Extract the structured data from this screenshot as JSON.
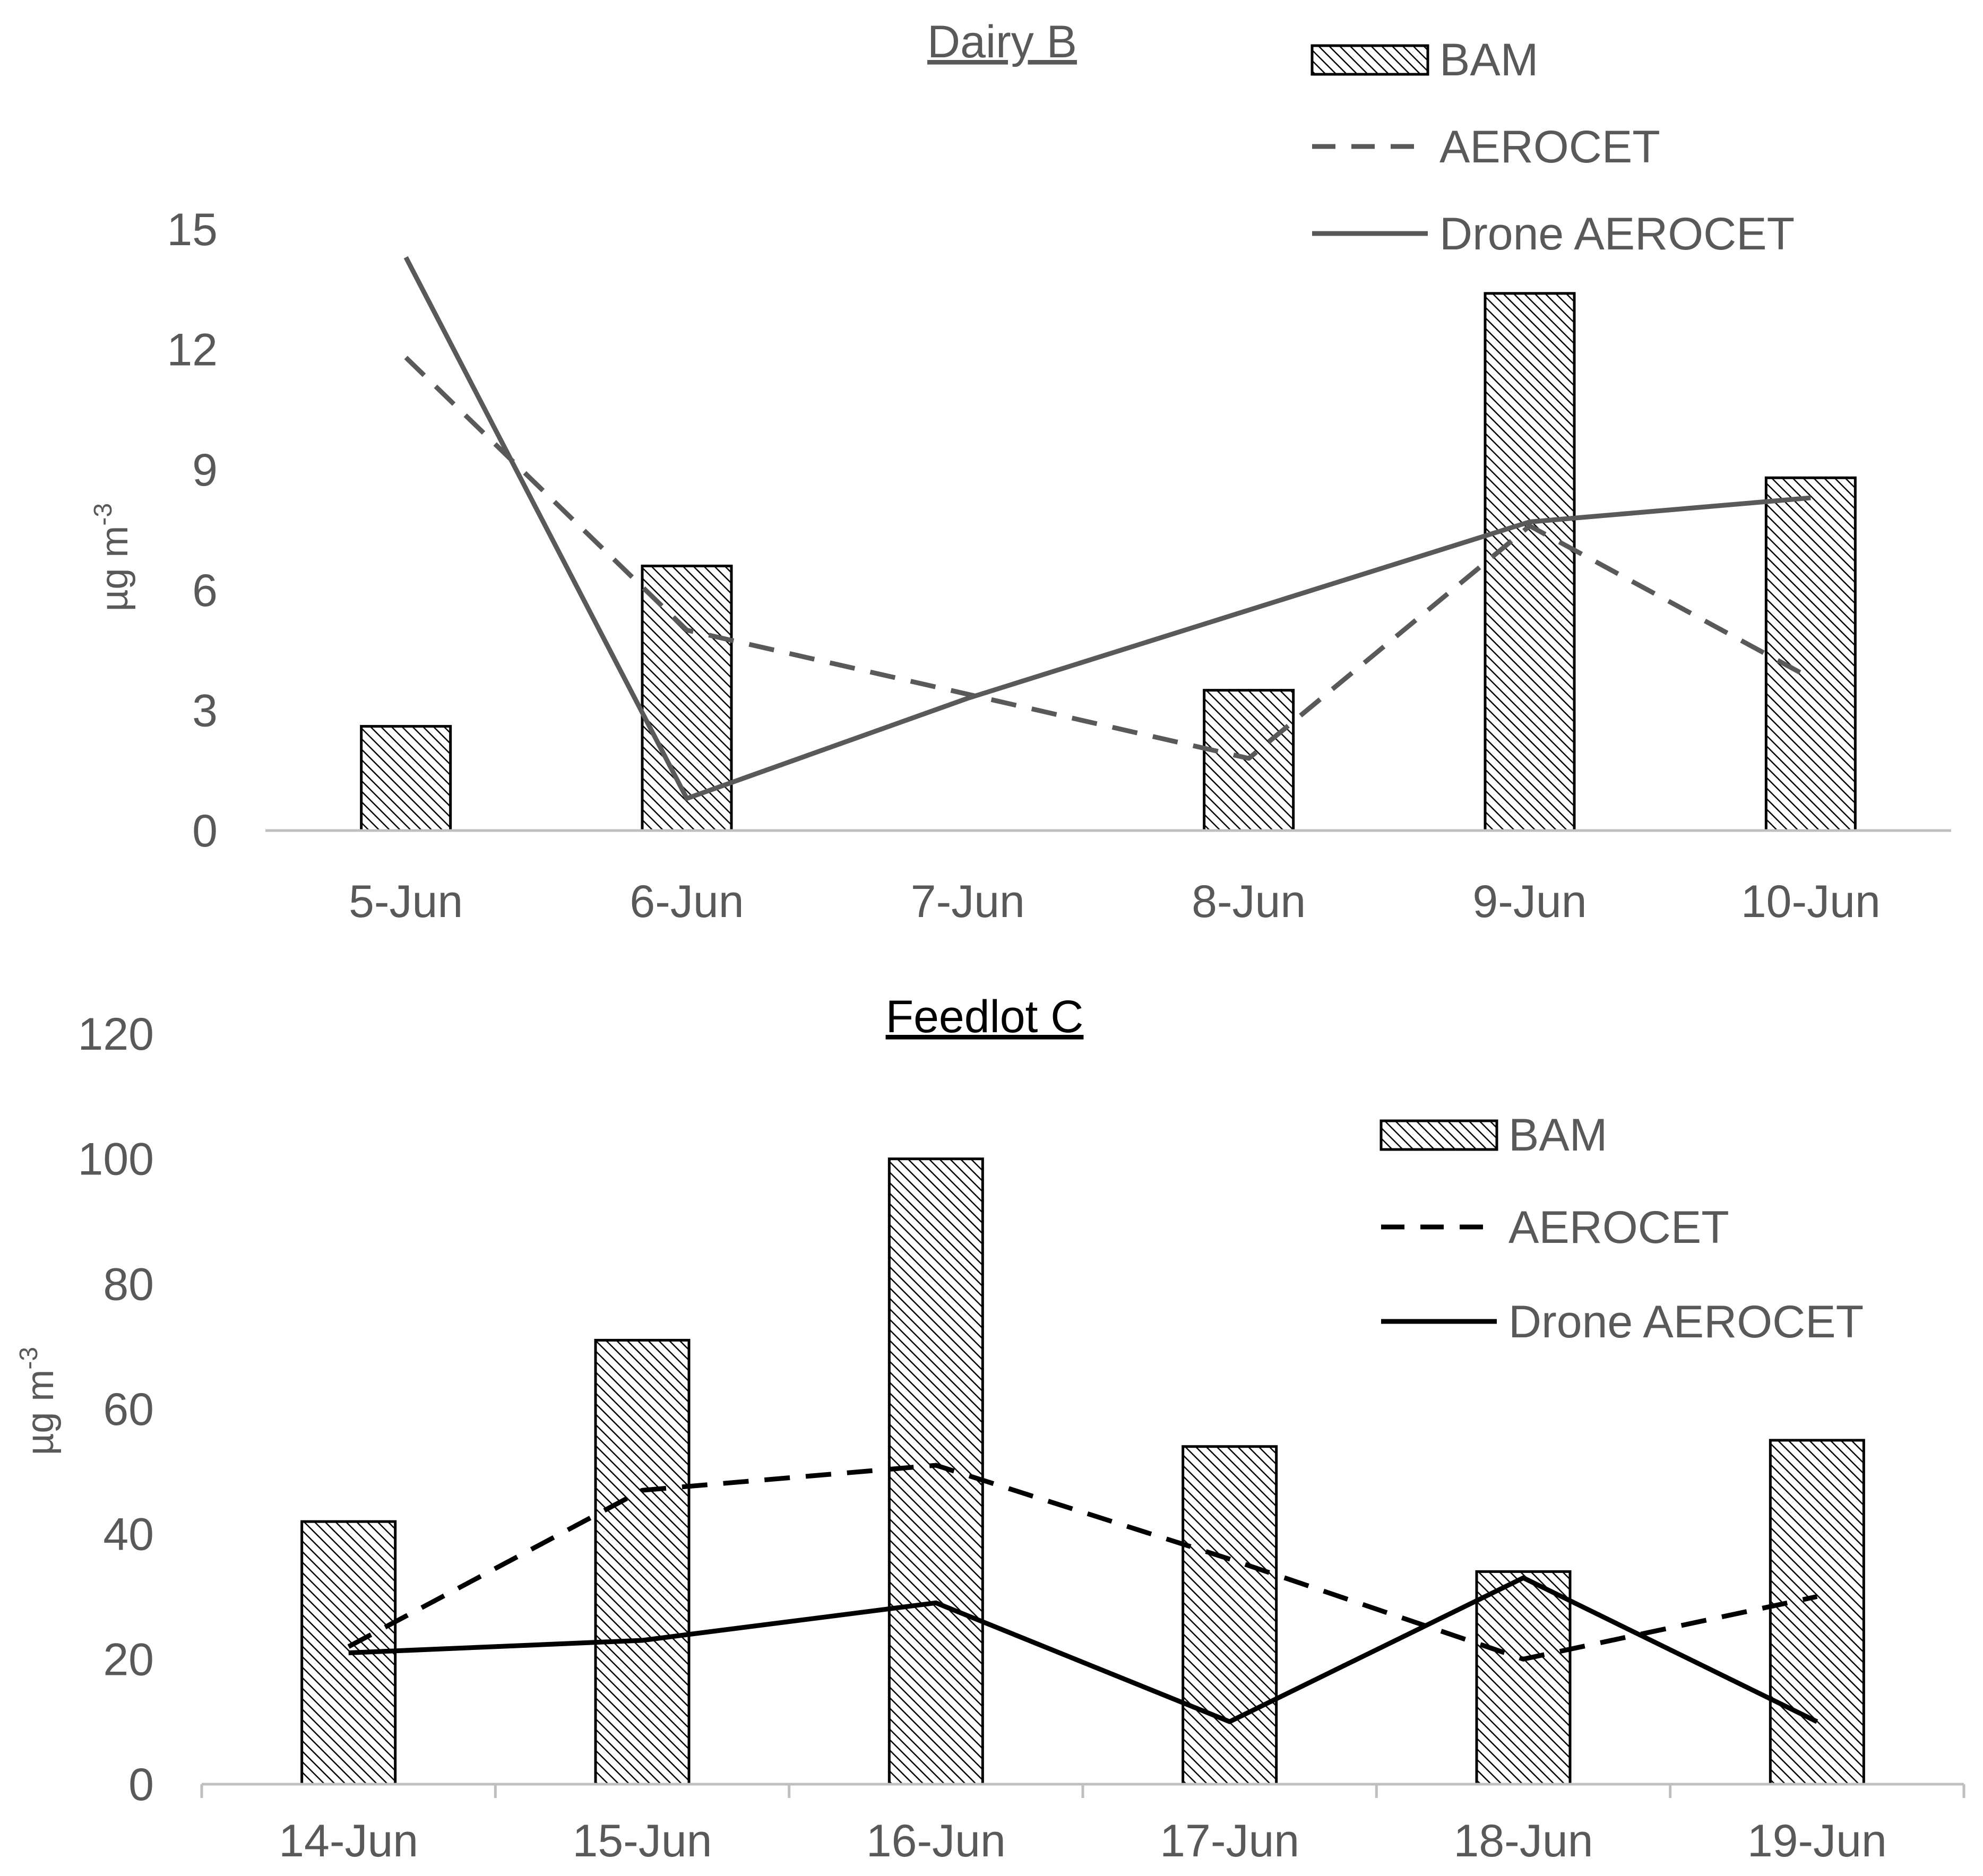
{
  "chart_data": [
    {
      "type": "bar",
      "title": "Dairy B",
      "ylabel": "µg m",
      "ylabel_sup": "-3",
      "ylim": [
        0,
        15
      ],
      "yticks": [
        0,
        3,
        6,
        9,
        12,
        15
      ],
      "categories": [
        "5-Jun",
        "6-Jun",
        "7-Jun",
        "8-Jun",
        "9-Jun",
        "10-Jun"
      ],
      "legend_position": "top-right",
      "series": [
        {
          "name": "BAM",
          "kind": "bar",
          "values": [
            2.6,
            6.6,
            null,
            3.5,
            13.4,
            8.8
          ]
        },
        {
          "name": "AEROCET",
          "kind": "dashed-line",
          "values": [
            11.8,
            5.0,
            3.4,
            1.8,
            7.6,
            3.8
          ]
        },
        {
          "name": "Drone AEROCET",
          "kind": "line",
          "values": [
            14.3,
            0.8,
            3.3,
            5.5,
            7.7,
            8.3
          ]
        }
      ]
    },
    {
      "type": "bar",
      "title": "Feedlot C",
      "ylabel": "µg m",
      "ylabel_sup": "-3",
      "ylim": [
        0,
        120
      ],
      "yticks": [
        0,
        20,
        40,
        60,
        80,
        100,
        120
      ],
      "categories": [
        "14-Jun",
        "15-Jun",
        "16-Jun",
        "17-Jun",
        "18-Jun",
        "19-Jun"
      ],
      "legend_position": "top-right",
      "series": [
        {
          "name": "BAM",
          "kind": "bar",
          "values": [
            42,
            71,
            100,
            54,
            34,
            55
          ]
        },
        {
          "name": "AEROCET",
          "kind": "dashed-line",
          "values": [
            22,
            47,
            51,
            36,
            20,
            30
          ]
        },
        {
          "name": "Drone AEROCET",
          "kind": "line",
          "values": [
            21,
            23,
            29,
            10,
            33,
            10
          ]
        }
      ]
    }
  ],
  "colors": {
    "top_line": "#595959",
    "bottom_line": "#000000",
    "axis": "#bfbfbf",
    "text": "#595959",
    "title_top": "#595959",
    "title_bottom": "#000000"
  }
}
